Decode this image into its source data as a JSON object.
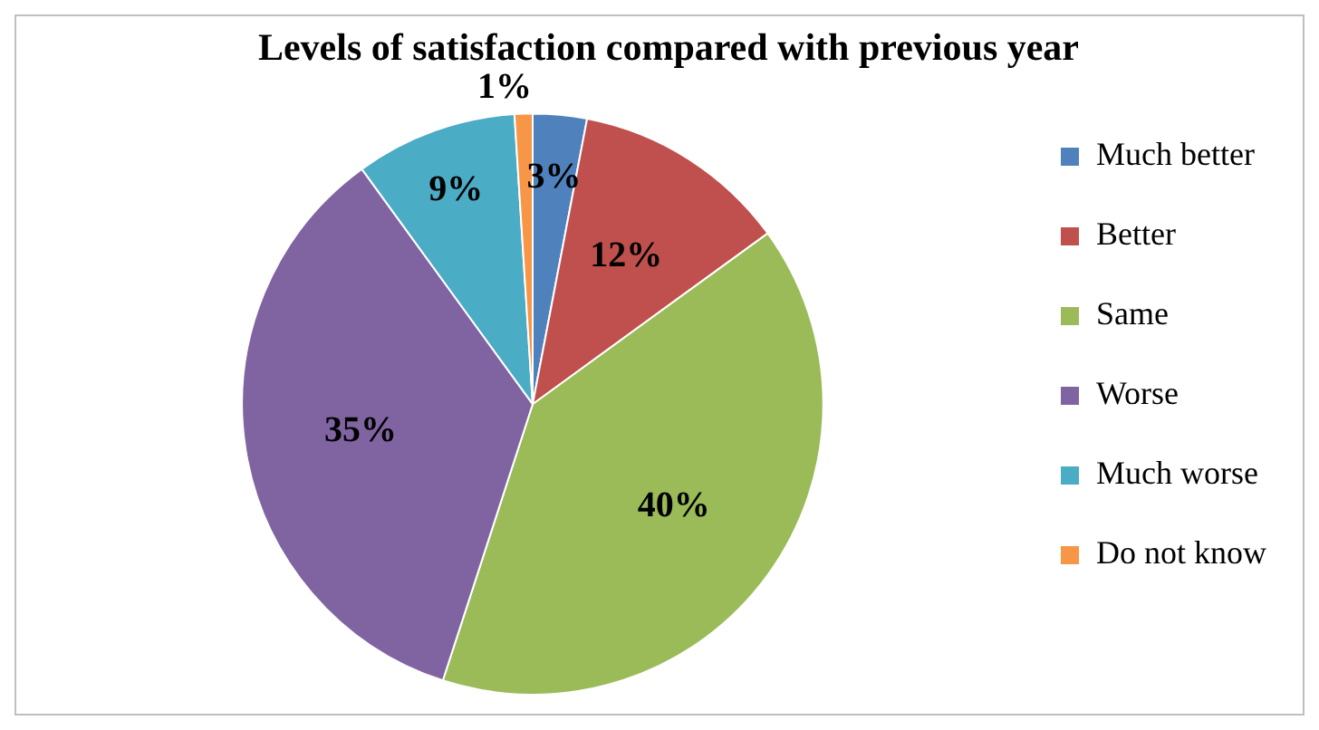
{
  "chart_data": {
    "type": "pie",
    "title": "Levels of satisfaction compared with previous year",
    "categories": [
      "Much better",
      "Better",
      "Same",
      "Worse",
      "Much worse",
      "Do not know"
    ],
    "values": [
      3,
      12,
      40,
      35,
      9,
      1
    ],
    "colors": [
      "#4f81bd",
      "#c0504d",
      "#9bbb59",
      "#8064a2",
      "#4bacc6",
      "#f79646"
    ],
    "value_labels": [
      "3%",
      "12%",
      "40%",
      "35%",
      "9%",
      "1%"
    ],
    "legend": "right"
  }
}
